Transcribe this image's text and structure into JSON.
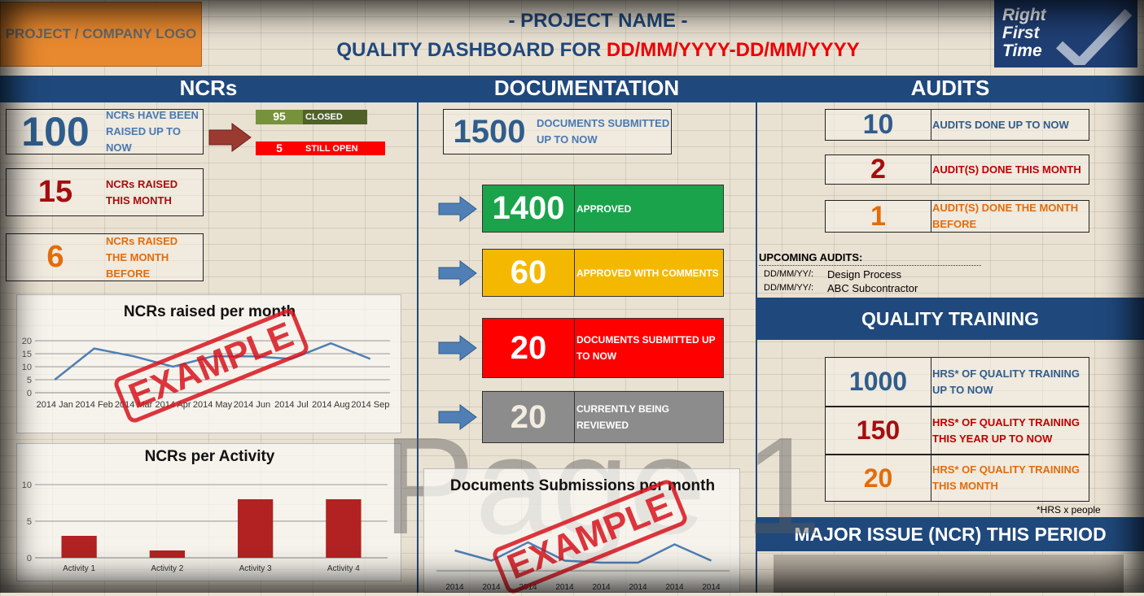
{
  "header": {
    "logo": "PROJECT / COMPANY LOGO",
    "project": "- PROJECT NAME -",
    "title": "QUALITY DASHBOARD FOR",
    "period": "DD/MM/YYYY-DD/MM/YYYY",
    "badge": [
      "Right",
      "First",
      "Time"
    ]
  },
  "ncrs": {
    "heading": "NCRs",
    "total": {
      "value": 100,
      "label": "NCRs HAVE BEEN RAISED UP TO NOW"
    },
    "closed": {
      "value": 95,
      "label": "CLOSED"
    },
    "open": {
      "value": 5,
      "label": "STILL OPEN"
    },
    "this_month": {
      "value": 15,
      "label": "NCRs RAISED THIS MONTH"
    },
    "month_before": {
      "value": 6,
      "label": "NCRs RAISED THE MONTH BEFORE"
    }
  },
  "documentation": {
    "heading": "DOCUMENTATION",
    "submitted": {
      "value": 1500,
      "label": "DOCUMENTS SUBMITTED UP TO NOW"
    },
    "statuses": [
      {
        "value": 1400,
        "label": "APPROVED"
      },
      {
        "value": 60,
        "label": "APPROVED WITH COMMENTS"
      },
      {
        "value": 20,
        "label": "DOCUMENTS SUBMITTED UP TO NOW"
      },
      {
        "value": 20,
        "label": "CURRENTLY BEING REVIEWED"
      }
    ]
  },
  "audits": {
    "heading": "AUDITS",
    "items": [
      {
        "value": 10,
        "label": "AUDITS DONE UP TO NOW"
      },
      {
        "value": 2,
        "label": "AUDIT(S) DONE THIS MONTH"
      },
      {
        "value": 1,
        "label": "AUDIT(S) DONE THE MONTH BEFORE"
      }
    ],
    "upcoming": {
      "title": "UPCOMING AUDITS:",
      "rows": [
        [
          "DD/MM/YY/:",
          "Design Process"
        ],
        [
          "DD/MM/YY/:",
          "ABC Subcontractor"
        ]
      ]
    }
  },
  "training": {
    "heading": "QUALITY TRAINING",
    "items": [
      {
        "value": 1000,
        "label": "HRS* OF QUALITY TRAINING UP TO NOW"
      },
      {
        "value": 150,
        "label": "HRS* OF QUALITY TRAINING THIS YEAR UP TO NOW"
      },
      {
        "value": 20,
        "label": "HRS* OF QUALITY TRAINING THIS MONTH"
      }
    ],
    "note": "*HRS x people"
  },
  "major_issue": {
    "heading": "MAJOR ISSUE (NCR) THIS PERIOD"
  },
  "stamp": "EXAMPLE",
  "watermark": "Page 1",
  "charts": [
    {
      "type": "line",
      "title": "NCRs raised per month",
      "color": "#4f7fb5",
      "categories": [
        "2014 Jan",
        "2014 Feb",
        "2014 Mar",
        "2014 Apr",
        "2014 May",
        "2014 Jun",
        "2014 Jul",
        "2014 Aug",
        "2014 Sep"
      ],
      "values": [
        5,
        17,
        14,
        10,
        14,
        14,
        13,
        19,
        13
      ],
      "ylim": [
        0,
        20
      ],
      "yticks": [
        0,
        5,
        10,
        15,
        20
      ],
      "grid": true
    },
    {
      "type": "bar",
      "title": "NCRs per Activity",
      "color": "#b22222",
      "categories": [
        "Activity 1",
        "Activity 2",
        "Activity 3",
        "Activity 4"
      ],
      "values": [
        3,
        1,
        8,
        8
      ],
      "ylim": [
        0,
        10
      ],
      "yticks": [
        0,
        5,
        10
      ],
      "grid": true
    },
    {
      "type": "line",
      "title": "Documents Submissions per month",
      "color": "#4f7fb5",
      "categories": [
        "2014",
        "2014",
        "2014",
        "2014",
        "2014",
        "2014",
        "2014",
        "2014"
      ],
      "values": [
        20,
        15,
        24,
        15,
        14,
        14,
        23,
        15
      ]
    }
  ]
}
